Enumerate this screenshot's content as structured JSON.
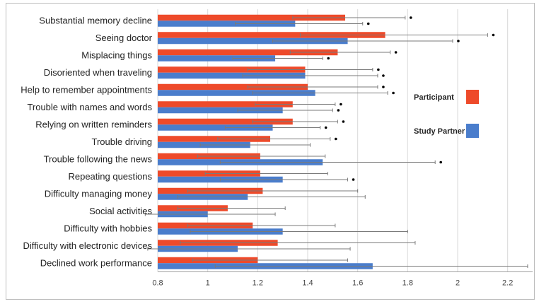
{
  "chart_data": {
    "type": "bar",
    "orientation": "horizontal",
    "title": "",
    "xlabel": "",
    "ylabel": "",
    "xlim": [
      0.8,
      2.3
    ],
    "xticks": [
      "0.8",
      "1",
      "1.2",
      "1.4",
      "1.6",
      "1.8",
      "2",
      "2.2"
    ],
    "grid": true,
    "legend_position": "right",
    "categories": [
      "Substantial memory decline",
      "Seeing doctor",
      "Misplacing things",
      "Disoriented when traveling",
      "Help to remember appointments",
      "Trouble with names and words",
      "Relying on written reminders",
      "Trouble driving",
      "Trouble following the news",
      "Repeating questions",
      "Difficulty managing money",
      "Social activities",
      "Difficulty with hobbies",
      "Difficulty with electronic devices",
      "Declined work performance"
    ],
    "series": [
      {
        "name": "Participant",
        "color": "#EE4A2A",
        "values": [
          1.55,
          1.71,
          1.52,
          1.39,
          1.4,
          1.34,
          1.34,
          1.25,
          1.21,
          1.21,
          1.22,
          1.08,
          1.18,
          1.28,
          1.2
        ],
        "error_low": [
          1.34,
          1.37,
          1.33,
          1.16,
          1.16,
          1.19,
          1.18,
          1.04,
          0.96,
          0.99,
          0.92,
          0.88,
          0.92,
          0.89,
          0.94
        ],
        "error_high": [
          1.79,
          2.12,
          1.73,
          1.66,
          1.68,
          1.51,
          1.52,
          1.49,
          1.47,
          1.48,
          1.6,
          1.31,
          1.51,
          1.83,
          1.56
        ],
        "significant": [
          true,
          true,
          true,
          true,
          true,
          true,
          true,
          true,
          false,
          false,
          false,
          false,
          false,
          false,
          false
        ]
      },
      {
        "name": "Study Partner",
        "color": "#4A7DCC",
        "values": [
          1.35,
          1.56,
          1.27,
          1.39,
          1.43,
          1.3,
          1.26,
          1.17,
          1.46,
          1.3,
          1.16,
          1.0,
          1.3,
          1.12,
          1.66
        ],
        "error_low": [
          1.11,
          1.26,
          1.1,
          1.14,
          1.18,
          1.12,
          1.07,
          0.97,
          1.05,
          1.05,
          0.88,
          0.75,
          0.93,
          0.76,
          1.03
        ],
        "error_high": [
          1.62,
          1.98,
          1.46,
          1.68,
          1.72,
          1.5,
          1.45,
          1.41,
          1.91,
          1.56,
          1.63,
          1.27,
          1.8,
          1.57,
          2.28
        ],
        "significant": [
          true,
          true,
          true,
          true,
          true,
          true,
          true,
          false,
          true,
          true,
          false,
          false,
          false,
          false,
          false
        ]
      }
    ]
  }
}
